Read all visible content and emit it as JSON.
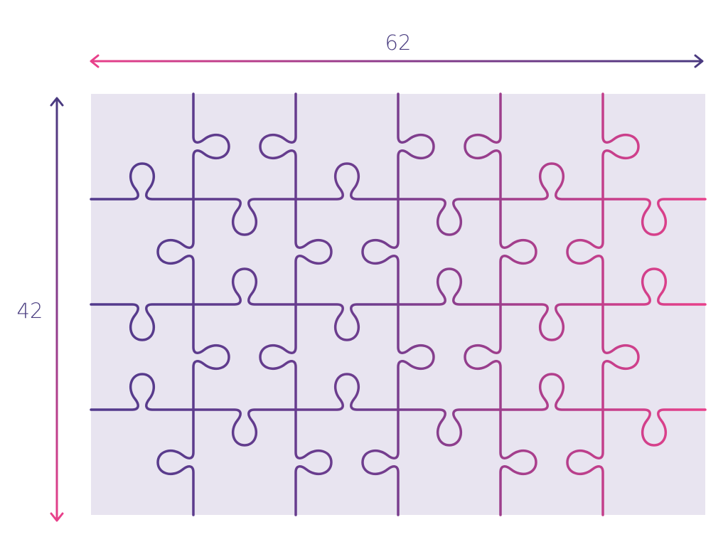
{
  "dimensions": {
    "width_label": "62",
    "height_label": "42"
  },
  "puzzle": {
    "columns": 6,
    "rows": 4
  },
  "colors": {
    "background": "#e8e4f0",
    "purple": "#523a8c",
    "pink": "#e8408a",
    "label": "#4a3d80"
  }
}
